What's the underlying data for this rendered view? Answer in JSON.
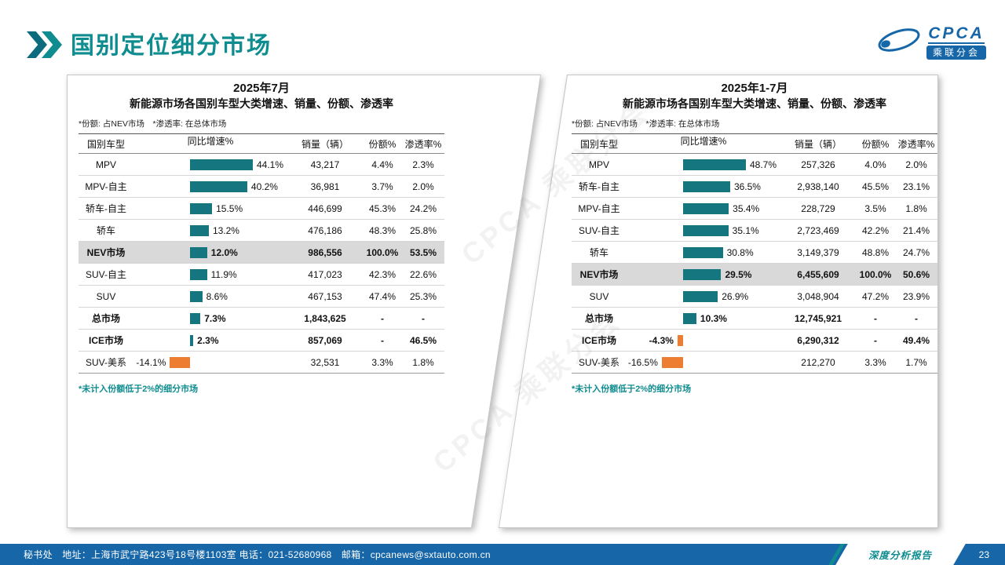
{
  "page": {
    "title": "国别定位细分市场",
    "page_number": "23",
    "watermark": "CPCA 乘联分会",
    "footer": {
      "left": "秘书处　地址：上海市武宁路423号18号楼1103室  电话：021-52680968　邮箱：cpcanews@sxtauto.com.cn",
      "report_label": "深度分析报告"
    }
  },
  "logo": {
    "name": "CPCA",
    "badge": "乘联分会"
  },
  "colors": {
    "accent_teal": "#0F8C8F",
    "accent_dark": "#0D6B7E",
    "bar_positive": "#16767F",
    "bar_negative": "#ED7D31",
    "footer_blue": "#1666A8",
    "logo_blue": "#1666A8",
    "highlight_row": "#D9D9D9"
  },
  "chart_data": [
    {
      "type": "table",
      "period": "2025年7月",
      "title": "新能源市场各国别车型大类增速、销量、份额、渗透率",
      "note": "*份额: 占NEV市场　*渗透率: 在总体市场",
      "footnote": "*未计入份额低于2%的细分市场",
      "columns": [
        "国别车型",
        "同比增速%",
        "销量（辆）",
        "份额%",
        "渗透率%"
      ],
      "rows": [
        {
          "label": "MPV",
          "growth": 44.1,
          "growth_label": "44.1%",
          "sales": "43,217",
          "share": "4.4%",
          "penetration": "2.3%",
          "emphasis": "normal"
        },
        {
          "label": "MPV-自主",
          "growth": 40.2,
          "growth_label": "40.2%",
          "sales": "36,981",
          "share": "3.7%",
          "penetration": "2.0%",
          "emphasis": "normal"
        },
        {
          "label": "轿车-自主",
          "growth": 15.5,
          "growth_label": "15.5%",
          "sales": "446,699",
          "share": "45.3%",
          "penetration": "24.2%",
          "emphasis": "normal"
        },
        {
          "label": "轿车",
          "growth": 13.2,
          "growth_label": "13.2%",
          "sales": "476,186",
          "share": "48.3%",
          "penetration": "25.8%",
          "emphasis": "normal"
        },
        {
          "label": "NEV市场",
          "growth": 12.0,
          "growth_label": "12.0%",
          "sales": "986,556",
          "share": "100.0%",
          "penetration": "53.5%",
          "emphasis": "highlight"
        },
        {
          "label": "SUV-自主",
          "growth": 11.9,
          "growth_label": "11.9%",
          "sales": "417,023",
          "share": "42.3%",
          "penetration": "22.6%",
          "emphasis": "normal"
        },
        {
          "label": "SUV",
          "growth": 8.6,
          "growth_label": "8.6%",
          "sales": "467,153",
          "share": "47.4%",
          "penetration": "25.3%",
          "emphasis": "normal"
        },
        {
          "label": "总市场",
          "growth": 7.3,
          "growth_label": "7.3%",
          "sales": "1,843,625",
          "share": "-",
          "penetration": "-",
          "emphasis": "bold"
        },
        {
          "label": "ICE市场",
          "growth": 2.3,
          "growth_label": "2.3%",
          "sales": "857,069",
          "share": "-",
          "penetration": "46.5%",
          "emphasis": "bold"
        },
        {
          "label": "SUV-美系",
          "growth": -14.1,
          "growth_label": "-14.1%",
          "sales": "32,531",
          "share": "3.3%",
          "penetration": "1.8%",
          "emphasis": "normal"
        }
      ]
    },
    {
      "type": "table",
      "period": "2025年1-7月",
      "title": "新能源市场各国别车型大类增速、销量、份额、渗透率",
      "note": "*份额: 占NEV市场　*渗透率: 在总体市场",
      "footnote": "*未计入份额低于2%的细分市场",
      "columns": [
        "国别车型",
        "同比增速%",
        "销量（辆）",
        "份额%",
        "渗透率%"
      ],
      "rows": [
        {
          "label": "MPV",
          "growth": 48.7,
          "growth_label": "48.7%",
          "sales": "257,326",
          "share": "4.0%",
          "penetration": "2.0%",
          "emphasis": "normal"
        },
        {
          "label": "轿车-自主",
          "growth": 36.5,
          "growth_label": "36.5%",
          "sales": "2,938,140",
          "share": "45.5%",
          "penetration": "23.1%",
          "emphasis": "normal"
        },
        {
          "label": "MPV-自主",
          "growth": 35.4,
          "growth_label": "35.4%",
          "sales": "228,729",
          "share": "3.5%",
          "penetration": "1.8%",
          "emphasis": "normal"
        },
        {
          "label": "SUV-自主",
          "growth": 35.1,
          "growth_label": "35.1%",
          "sales": "2,723,469",
          "share": "42.2%",
          "penetration": "21.4%",
          "emphasis": "normal"
        },
        {
          "label": "轿车",
          "growth": 30.8,
          "growth_label": "30.8%",
          "sales": "3,149,379",
          "share": "48.8%",
          "penetration": "24.7%",
          "emphasis": "normal"
        },
        {
          "label": "NEV市场",
          "growth": 29.5,
          "growth_label": "29.5%",
          "sales": "6,455,609",
          "share": "100.0%",
          "penetration": "50.6%",
          "emphasis": "highlight"
        },
        {
          "label": "SUV",
          "growth": 26.9,
          "growth_label": "26.9%",
          "sales": "3,048,904",
          "share": "47.2%",
          "penetration": "23.9%",
          "emphasis": "normal"
        },
        {
          "label": "总市场",
          "growth": 10.3,
          "growth_label": "10.3%",
          "sales": "12,745,921",
          "share": "-",
          "penetration": "-",
          "emphasis": "bold"
        },
        {
          "label": "ICE市场",
          "growth": -4.3,
          "growth_label": "-4.3%",
          "sales": "6,290,312",
          "share": "-",
          "penetration": "49.4%",
          "emphasis": "bold"
        },
        {
          "label": "SUV-美系",
          "growth": -16.5,
          "growth_label": "-16.5%",
          "sales": "212,270",
          "share": "3.3%",
          "penetration": "1.7%",
          "emphasis": "normal"
        }
      ]
    }
  ]
}
